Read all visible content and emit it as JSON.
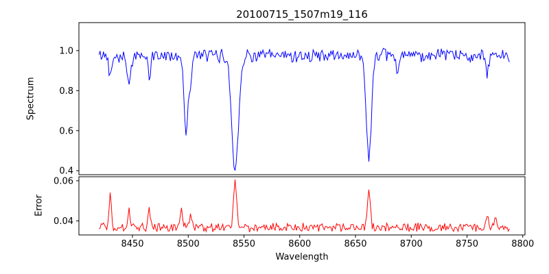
{
  "figure": {
    "title": "20100715_1507m19_116",
    "xlabel": "Wavelength",
    "spectrum_panel": {
      "ylabel": "Spectrum"
    },
    "error_panel": {
      "ylabel": "Error"
    }
  },
  "chart_data": [
    {
      "type": "line",
      "name": "spectrum",
      "title": "20100715_1507m19_116",
      "xlabel": "",
      "ylabel": "Spectrum",
      "line_color": "#0000ff",
      "x_range": [
        8420,
        8788
      ],
      "x_step": 1,
      "xlim": [
        8402,
        8802
      ],
      "ylim": [
        0.38,
        1.14
      ],
      "yticks": [
        {
          "value": 0.4,
          "label": "0.4"
        },
        {
          "value": 0.6,
          "label": "0.6"
        },
        {
          "value": 0.8,
          "label": "0.8"
        },
        {
          "value": 1.0,
          "label": "1.0"
        }
      ],
      "show_xtick_labels": false,
      "grid": false,
      "legend": "none",
      "continuum_baseline": 1.0,
      "noise_baseline": 0.975,
      "noise_amplitude": 0.028,
      "absorption_lines": [
        {
          "center": 8430,
          "depth": 0.1,
          "sigma": 1.2
        },
        {
          "center": 8447,
          "depth": 0.16,
          "sigma": 1.5
        },
        {
          "center": 8465,
          "depth": 0.12,
          "sigma": 1.2
        },
        {
          "center": 8498,
          "depth": 0.38,
          "sigma": 1.8,
          "minimum": 0.6
        },
        {
          "center": 8502,
          "depth": 0.12,
          "sigma": 1.2
        },
        {
          "center": 8542,
          "depth": 0.57,
          "sigma": 3.0,
          "minimum": 0.41
        },
        {
          "center": 8662,
          "depth": 0.52,
          "sigma": 2.2,
          "minimum": 0.46
        },
        {
          "center": 8688,
          "depth": 0.09,
          "sigma": 1.2
        },
        {
          "center": 8768,
          "depth": 0.1,
          "sigma": 1.2
        }
      ]
    },
    {
      "type": "line",
      "name": "error",
      "title": "",
      "xlabel": "Wavelength",
      "ylabel": "Error",
      "line_color": "#ff0000",
      "x_range": [
        8420,
        8788
      ],
      "x_step": 1,
      "xlim": [
        8402,
        8802
      ],
      "ylim": [
        0.033,
        0.062
      ],
      "yticks": [
        {
          "value": 0.04,
          "label": "0.04"
        },
        {
          "value": 0.06,
          "label": "0.06"
        }
      ],
      "xticks": [
        {
          "value": 8450,
          "label": "8450"
        },
        {
          "value": 8500,
          "label": "8500"
        },
        {
          "value": 8550,
          "label": "8550"
        },
        {
          "value": 8600,
          "label": "8600"
        },
        {
          "value": 8650,
          "label": "8650"
        },
        {
          "value": 8700,
          "label": "8700"
        },
        {
          "value": 8750,
          "label": "8750"
        },
        {
          "value": 8800,
          "label": "8800"
        }
      ],
      "show_xtick_labels": true,
      "grid": false,
      "legend": "none",
      "noise_baseline": 0.0368,
      "noise_amplitude": 0.0018,
      "emission_spikes": [
        {
          "center": 8430,
          "amplitude": 0.017,
          "sigma": 1.0,
          "peak": 0.054
        },
        {
          "center": 8447,
          "amplitude": 0.008,
          "sigma": 1.0
        },
        {
          "center": 8465,
          "amplitude": 0.008,
          "sigma": 1.0
        },
        {
          "center": 8494,
          "amplitude": 0.009,
          "sigma": 1.0,
          "peak": 0.047
        },
        {
          "center": 8502,
          "amplitude": 0.007,
          "sigma": 1.0
        },
        {
          "center": 8542,
          "amplitude": 0.024,
          "sigma": 1.4,
          "peak": 0.061
        },
        {
          "center": 8662,
          "amplitude": 0.018,
          "sigma": 1.3,
          "peak": 0.055
        },
        {
          "center": 8768,
          "amplitude": 0.007,
          "sigma": 1.0
        },
        {
          "center": 8775,
          "amplitude": 0.005,
          "sigma": 1.0
        }
      ]
    }
  ]
}
